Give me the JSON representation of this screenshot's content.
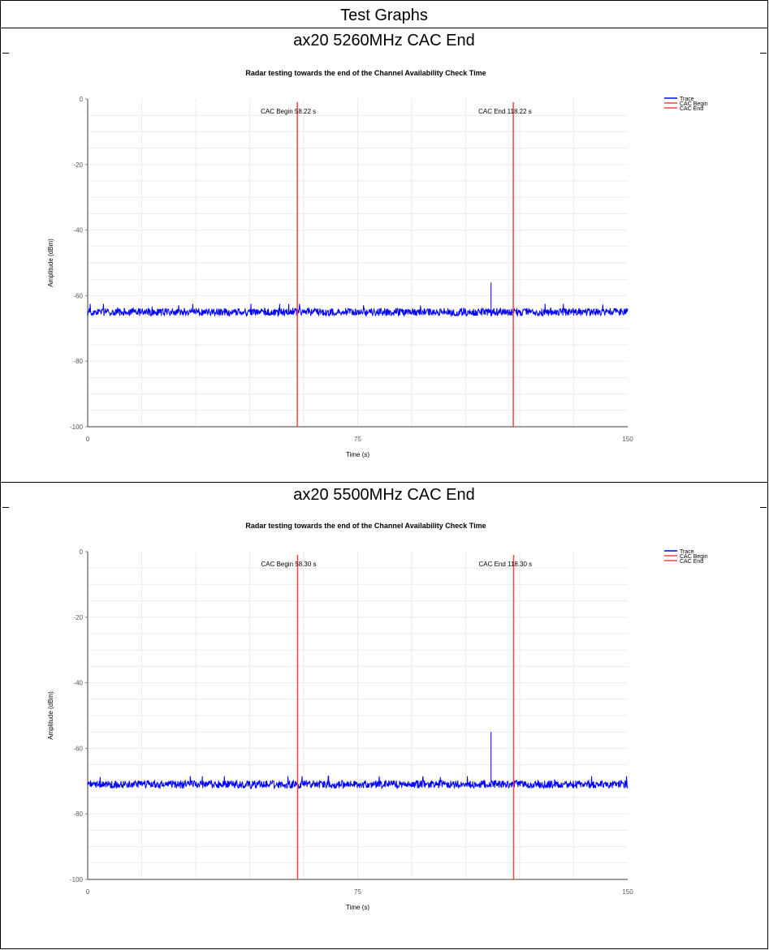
{
  "page": {
    "title": "Test Graphs"
  },
  "colors": {
    "trace": "#0000ff",
    "marker": "#ff4040",
    "grid": "#ebebeb",
    "axis": "#7f7f7f"
  },
  "chart_data": [
    {
      "type": "line",
      "heading": "ax20 5260MHz CAC End",
      "title": "Radar testing towards the end of the Channel Availability Check Time",
      "xlabel": "Time (s)",
      "ylabel": "Amplitude (dBm)",
      "xlim": [
        0,
        150
      ],
      "ylim": [
        -100,
        0
      ],
      "x_ticks": [
        "0",
        "75",
        "150"
      ],
      "y_ticks": [
        "0",
        "-20",
        "-40",
        "-60",
        "-80",
        "-100"
      ],
      "grid": true,
      "legend_position": "top-right",
      "series": [
        {
          "name": "Trace",
          "baseline": -65,
          "noise_band": [
            -66.5,
            -62.5
          ],
          "spike": {
            "x": 112,
            "y": -56
          }
        },
        {
          "name": "CAC Begin",
          "x": 58.22
        },
        {
          "name": "CAC End",
          "x": 118.22
        }
      ],
      "annotations": [
        {
          "text": "CAC Begin 58.22 s",
          "x": 58.22
        },
        {
          "text": "CAC End 118.22 s",
          "x": 118.22
        }
      ]
    },
    {
      "type": "line",
      "heading": "ax20 5500MHz CAC End",
      "title": "Radar testing towards the end of the Channel Availability Check Time",
      "xlabel": "Time (s)",
      "ylabel": "Amplitude (dBm)",
      "xlim": [
        0,
        150
      ],
      "ylim": [
        -100,
        0
      ],
      "x_ticks": [
        "0",
        "75",
        "150"
      ],
      "y_ticks": [
        "0",
        "-20",
        "-40",
        "-60",
        "-80",
        "-100"
      ],
      "grid": true,
      "legend_position": "top-right",
      "series": [
        {
          "name": "Trace",
          "baseline": -71,
          "noise_band": [
            -72.5,
            -68.5
          ],
          "spike": {
            "x": 112,
            "y": -55
          }
        },
        {
          "name": "CAC Begin",
          "x": 58.3
        },
        {
          "name": "CAC End",
          "x": 118.3
        }
      ],
      "annotations": [
        {
          "text": "CAC Begin 58.30 s",
          "x": 58.3
        },
        {
          "text": "CAC End 118.30 s",
          "x": 118.3
        }
      ]
    }
  ]
}
